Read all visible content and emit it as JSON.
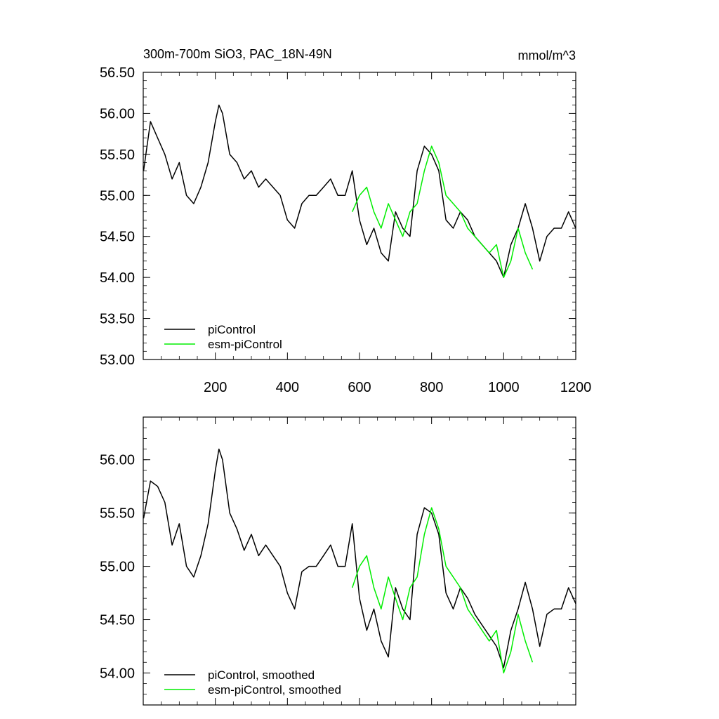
{
  "chart_data": [
    {
      "type": "line",
      "title": "300m-700m SiO3, PAC_18N-49N",
      "units": "mmol/m^3",
      "xlim": [
        0,
        1200
      ],
      "ylim": [
        53.0,
        56.5
      ],
      "x_ticks": [
        200,
        400,
        600,
        800,
        1000,
        1200
      ],
      "x_tick_labels": [
        "200",
        "400",
        "600",
        "800",
        "1000",
        "1200"
      ],
      "y_ticks": [
        53.0,
        53.5,
        54.0,
        54.5,
        55.0,
        55.5,
        56.0,
        56.5
      ],
      "y_tick_labels": [
        "53.00",
        "53.50",
        "54.00",
        "54.50",
        "55.00",
        "55.50",
        "56.00",
        "56.50"
      ],
      "legend_position": "bottom-left",
      "series": [
        {
          "name": "piControl",
          "color": "#000000",
          "x": [
            1,
            20,
            40,
            60,
            80,
            100,
            120,
            140,
            160,
            180,
            200,
            210,
            220,
            240,
            260,
            280,
            300,
            320,
            340,
            360,
            380,
            400,
            420,
            440,
            460,
            480,
            500,
            520,
            540,
            560,
            580,
            600,
            620,
            640,
            660,
            680,
            700,
            720,
            740,
            760,
            780,
            800,
            820,
            840,
            860,
            880,
            900,
            920,
            940,
            960,
            980,
            1000,
            1020,
            1040,
            1060,
            1080,
            1100,
            1120,
            1140,
            1160,
            1180,
            1200
          ],
          "y": [
            55.3,
            55.9,
            55.7,
            55.5,
            55.2,
            55.4,
            55.0,
            54.9,
            55.1,
            55.4,
            55.9,
            56.1,
            56.0,
            55.5,
            55.4,
            55.2,
            55.3,
            55.1,
            55.2,
            55.1,
            55.0,
            54.7,
            54.6,
            54.9,
            55.0,
            55.0,
            55.1,
            55.2,
            55.0,
            55.0,
            55.3,
            54.7,
            54.4,
            54.6,
            54.3,
            54.2,
            54.8,
            54.6,
            54.5,
            55.3,
            55.6,
            55.5,
            55.3,
            54.7,
            54.6,
            54.8,
            54.7,
            54.5,
            54.4,
            54.3,
            54.2,
            54.0,
            54.4,
            54.6,
            54.9,
            54.6,
            54.2,
            54.5,
            54.6,
            54.6,
            54.8,
            54.6
          ]
        },
        {
          "name": "esm-piControl",
          "color": "#00ee00",
          "x": [
            580,
            600,
            620,
            640,
            660,
            680,
            700,
            720,
            740,
            760,
            780,
            800,
            820,
            840,
            860,
            880,
            900,
            920,
            940,
            960,
            980,
            1000,
            1020,
            1040,
            1060,
            1080
          ],
          "y": [
            54.8,
            55.0,
            55.1,
            54.8,
            54.6,
            54.9,
            54.7,
            54.5,
            54.8,
            54.9,
            55.3,
            55.6,
            55.4,
            55.0,
            54.9,
            54.8,
            54.6,
            54.5,
            54.4,
            54.3,
            54.4,
            54.0,
            54.2,
            54.6,
            54.3,
            54.1
          ]
        }
      ]
    },
    {
      "type": "line",
      "title": "",
      "xlim": [
        0,
        1200
      ],
      "ylim": [
        53.7,
        56.4
      ],
      "x_ticks": [
        200,
        400,
        600,
        800,
        1000,
        1200
      ],
      "y_ticks": [
        54.0,
        54.5,
        55.0,
        55.5,
        56.0
      ],
      "y_tick_labels": [
        "54.00",
        "54.50",
        "55.00",
        "55.50",
        "56.00"
      ],
      "legend_position": "bottom-left",
      "series": [
        {
          "name": "piControl, smoothed",
          "color": "#000000",
          "x": [
            1,
            20,
            40,
            60,
            80,
            100,
            120,
            140,
            160,
            180,
            200,
            210,
            220,
            240,
            260,
            280,
            300,
            320,
            340,
            360,
            380,
            400,
            420,
            440,
            460,
            480,
            500,
            520,
            540,
            560,
            580,
            600,
            620,
            640,
            660,
            680,
            700,
            720,
            740,
            760,
            780,
            800,
            820,
            840,
            860,
            880,
            900,
            920,
            940,
            960,
            980,
            1000,
            1020,
            1040,
            1060,
            1080,
            1100,
            1120,
            1140,
            1160,
            1180,
            1200
          ],
          "y": [
            55.45,
            55.8,
            55.75,
            55.6,
            55.2,
            55.4,
            55.0,
            54.9,
            55.1,
            55.4,
            55.9,
            56.1,
            56.0,
            55.5,
            55.35,
            55.15,
            55.3,
            55.1,
            55.2,
            55.1,
            55.0,
            54.75,
            54.6,
            54.95,
            55.0,
            55.0,
            55.1,
            55.2,
            55.0,
            55.0,
            55.4,
            54.7,
            54.4,
            54.6,
            54.3,
            54.15,
            54.8,
            54.6,
            54.5,
            55.3,
            55.55,
            55.5,
            55.3,
            54.75,
            54.6,
            54.8,
            54.7,
            54.55,
            54.45,
            54.35,
            54.25,
            54.05,
            54.4,
            54.6,
            54.85,
            54.6,
            54.25,
            54.55,
            54.6,
            54.6,
            54.8,
            54.65
          ]
        },
        {
          "name": "esm-piControl, smoothed",
          "color": "#00ee00",
          "x": [
            580,
            600,
            620,
            640,
            660,
            680,
            700,
            720,
            740,
            760,
            780,
            800,
            820,
            840,
            860,
            880,
            900,
            920,
            940,
            960,
            980,
            1000,
            1020,
            1040,
            1060,
            1080
          ],
          "y": [
            54.8,
            55.0,
            55.1,
            54.8,
            54.6,
            54.9,
            54.7,
            54.5,
            54.8,
            54.9,
            55.3,
            55.55,
            55.35,
            55.0,
            54.9,
            54.8,
            54.6,
            54.5,
            54.4,
            54.3,
            54.4,
            54.0,
            54.2,
            54.55,
            54.3,
            54.1
          ]
        }
      ]
    }
  ]
}
